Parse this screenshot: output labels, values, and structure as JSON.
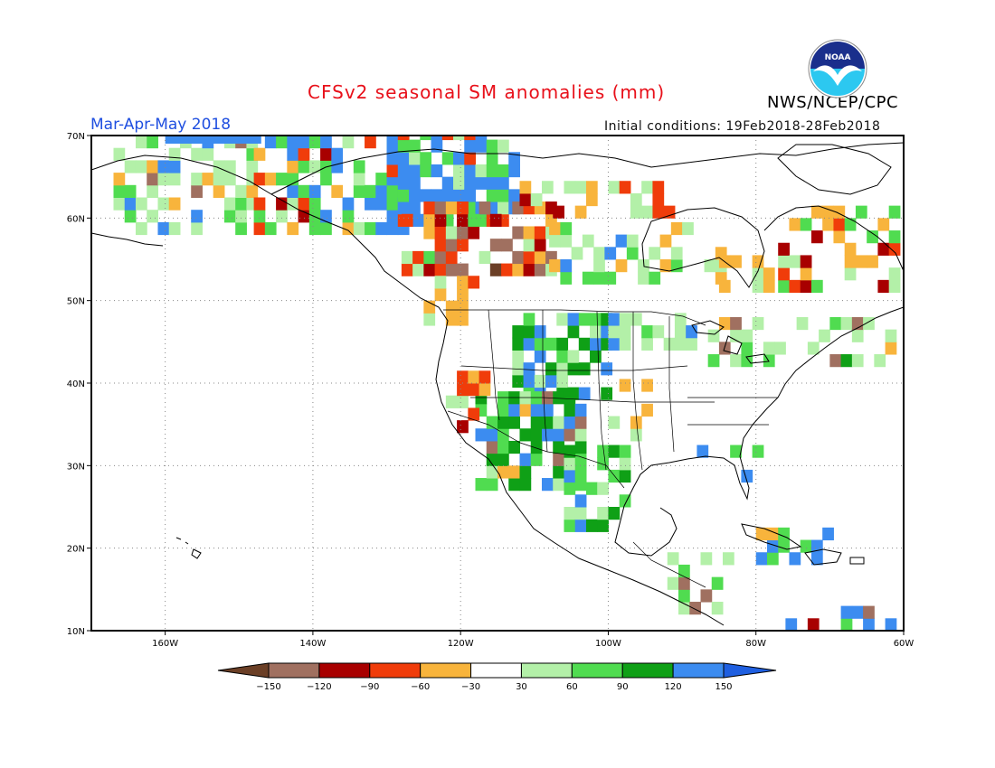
{
  "title": "CFSv2 seasonal SM anomalies (mm)",
  "agency": "NWS/NCEP/CPC",
  "logo_text": "NOAA",
  "period": "Mar-Apr-May 2018",
  "initial_conditions": "Initial conditions: 19Feb2018-28Feb2018",
  "map": {
    "lon_range": [
      -170,
      -60
    ],
    "lat_range": [
      10,
      70
    ],
    "lat_labels": [
      "70N",
      "60N",
      "50N",
      "40N",
      "30N",
      "20N",
      "10N"
    ],
    "lon_labels": [
      "160W",
      "140W",
      "120W",
      "100W",
      "80W",
      "60W"
    ],
    "grid": "dotted, every 20° longitude and 10° latitude"
  },
  "colorbar": {
    "labels": [
      "−150",
      "−120",
      "−90",
      "−60",
      "−30",
      "30",
      "60",
      "90",
      "120",
      "150"
    ],
    "colors": [
      "#6b3f26",
      "#a07060",
      "#a80000",
      "#f03c0a",
      "#f8b43c",
      "#ffffff",
      "#b3f0a8",
      "#50dc50",
      "#0fa016",
      "#3c8cf0",
      "#1f5fe0"
    ]
  },
  "colors": {
    "title": "#e8101a",
    "period": "#1f4fe0",
    "coast": "#000000",
    "grid": "#888888"
  }
}
